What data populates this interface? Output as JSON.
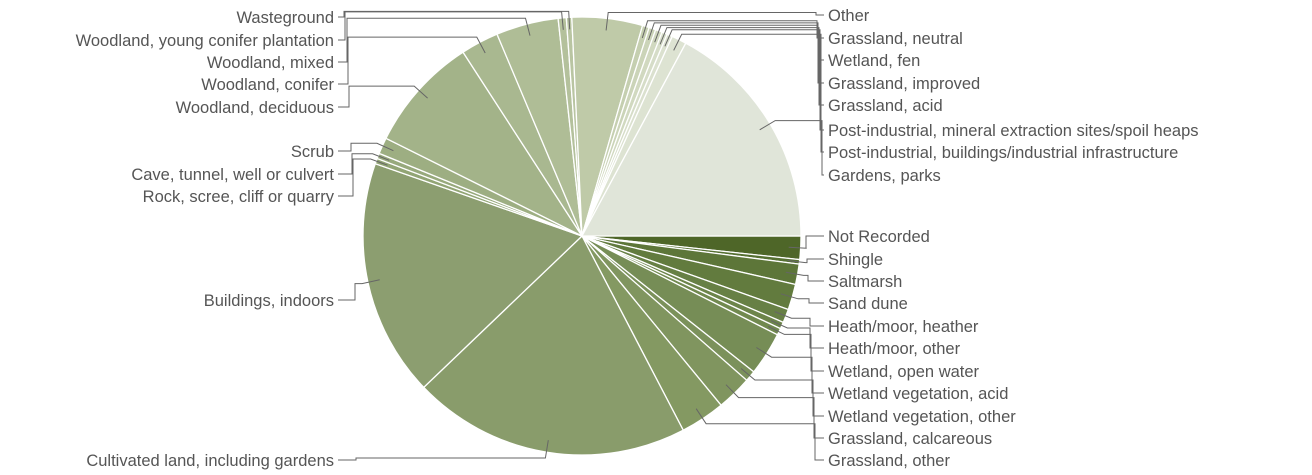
{
  "chart_data": {
    "type": "pie",
    "title": "",
    "legend": "none",
    "start": "3 o'clock, clockwise",
    "slices": [
      {
        "label": "Not Recorded",
        "value": 1.72,
        "color": "#4e6628"
      },
      {
        "label": "Shingle",
        "value": 0.33,
        "color": "#567032"
      },
      {
        "label": "Saltmarsh",
        "value": 1.5,
        "color": "#5d7639"
      },
      {
        "label": "Sand dune",
        "value": 1.9,
        "color": "#627b3e"
      },
      {
        "label": "Heath/moor, heather",
        "value": 1.0,
        "color": "#678045"
      },
      {
        "label": "Heath/moor, other",
        "value": 0.5,
        "color": "#6c844a"
      },
      {
        "label": "Wetland, open water",
        "value": 0.5,
        "color": "#71894f"
      },
      {
        "label": "Wetland vegetation, acid",
        "value": 3.2,
        "color": "#768d56"
      },
      {
        "label": "Wetland vegetation, other",
        "value": 0.8,
        "color": "#7b915b"
      },
      {
        "label": "Grassland, calcareous",
        "value": 2.6,
        "color": "#80955f"
      },
      {
        "label": "Grassland, other",
        "value": 3.3,
        "color": "#849962"
      },
      {
        "label": "Cultivated land, including gardens",
        "value": 20.5,
        "color": "#899c6b"
      },
      {
        "label": "Buildings, indoors",
        "value": 17.5,
        "color": "#8c9e70"
      },
      {
        "label": "Rock, scree, cliff or quarry",
        "value": 0.4,
        "color": "#92a575"
      },
      {
        "label": "Cave, tunnel, well or culvert",
        "value": 0.4,
        "color": "#97a97c"
      },
      {
        "label": "Scrub",
        "value": 1.2,
        "color": "#9dae82"
      },
      {
        "label": "Woodland, deciduous",
        "value": 8.5,
        "color": "#a3b389"
      },
      {
        "label": "Woodland, conifer",
        "value": 2.8,
        "color": "#a9b890"
      },
      {
        "label": "Woodland, mixed",
        "value": 4.6,
        "color": "#afbd96"
      },
      {
        "label": "Woodland, young conifer plantation",
        "value": 0.6,
        "color": "#b4c19c"
      },
      {
        "label": "Wasteground",
        "value": 0.4,
        "color": "#b9c5a2"
      },
      {
        "label": "Other",
        "value": 5.2,
        "color": "#bfcaa8"
      },
      {
        "label": "Grassland, neutral",
        "value": 0.5,
        "color": "#c5cfb0"
      },
      {
        "label": "Wetland, fen",
        "value": 0.5,
        "color": "#cbd4b8"
      },
      {
        "label": "Grassland, improved",
        "value": 0.5,
        "color": "#d1d9c0"
      },
      {
        "label": "Grassland, acid",
        "value": 0.4,
        "color": "#d6ddc8"
      },
      {
        "label": "Post-industrial, mineral extraction sites/spoil heaps",
        "value": 0.4,
        "color": "#dbe1cf"
      },
      {
        "label": "Post-industrial, buildings/industrial infrastructure",
        "value": 1.1,
        "color": "#dde3d2"
      },
      {
        "label": "Gardens, parks",
        "value": 17.14,
        "color": "#e0e5d9"
      }
    ]
  }
}
